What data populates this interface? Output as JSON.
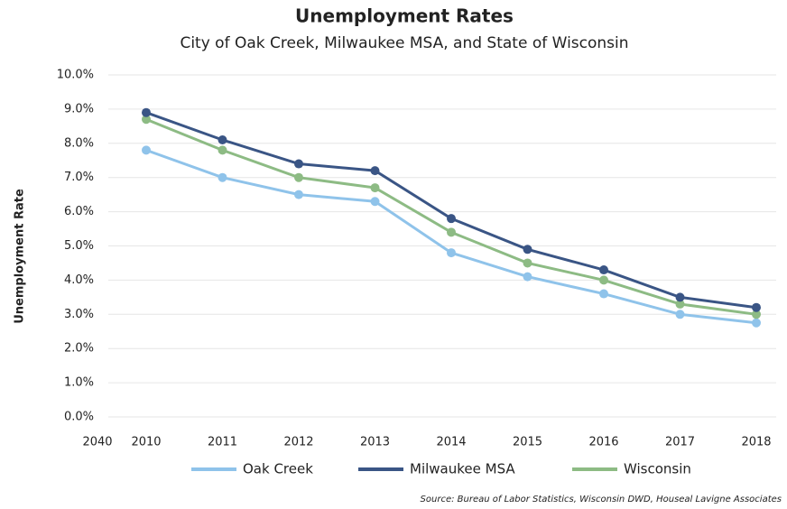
{
  "chart_data": {
    "type": "line",
    "title": "Unemployment Rates",
    "subtitle": "City of Oak Creek, Milwaukee MSA, and State of Wisconsin",
    "y_label": "Unemployment Rate",
    "source": "Source: Bureau of Labor Statistics, Wisconsin DWD, Houseal Lavigne Associates",
    "annotations": [
      "2040"
    ],
    "categories": [
      "2010",
      "2011",
      "2012",
      "2013",
      "2014",
      "2015",
      "2016",
      "2017",
      "2018"
    ],
    "series": [
      {
        "name": "Oak Creek",
        "color": "#8fc3ea",
        "values": [
          7.8,
          7.0,
          6.5,
          6.3,
          4.8,
          4.1,
          3.6,
          3.0,
          2.75
        ]
      },
      {
        "name": "Milwaukee MSA",
        "color": "#3a5585",
        "values": [
          8.9,
          8.1,
          7.4,
          7.2,
          5.8,
          4.9,
          4.3,
          3.5,
          3.2
        ]
      },
      {
        "name": "Wisconsin",
        "color": "#8dbb84",
        "values": [
          8.7,
          7.8,
          7.0,
          6.7,
          5.4,
          4.5,
          4.0,
          3.3,
          3.0
        ]
      }
    ],
    "ylim": [
      0,
      10
    ],
    "yticks": [
      {
        "value": 0,
        "label": "0.0%"
      },
      {
        "value": 1,
        "label": "1.0%"
      },
      {
        "value": 2,
        "label": "2.0%"
      },
      {
        "value": 3,
        "label": "3.0%"
      },
      {
        "value": 4,
        "label": "4.0%"
      },
      {
        "value": 5,
        "label": "5.0%"
      },
      {
        "value": 6,
        "label": "6.0%"
      },
      {
        "value": 7,
        "label": "7.0%"
      },
      {
        "value": 8,
        "label": "8.0%"
      },
      {
        "value": 9,
        "label": "9.0%"
      },
      {
        "value": 10,
        "label": "10.0%"
      }
    ],
    "grid": true,
    "legend": "bottom"
  }
}
